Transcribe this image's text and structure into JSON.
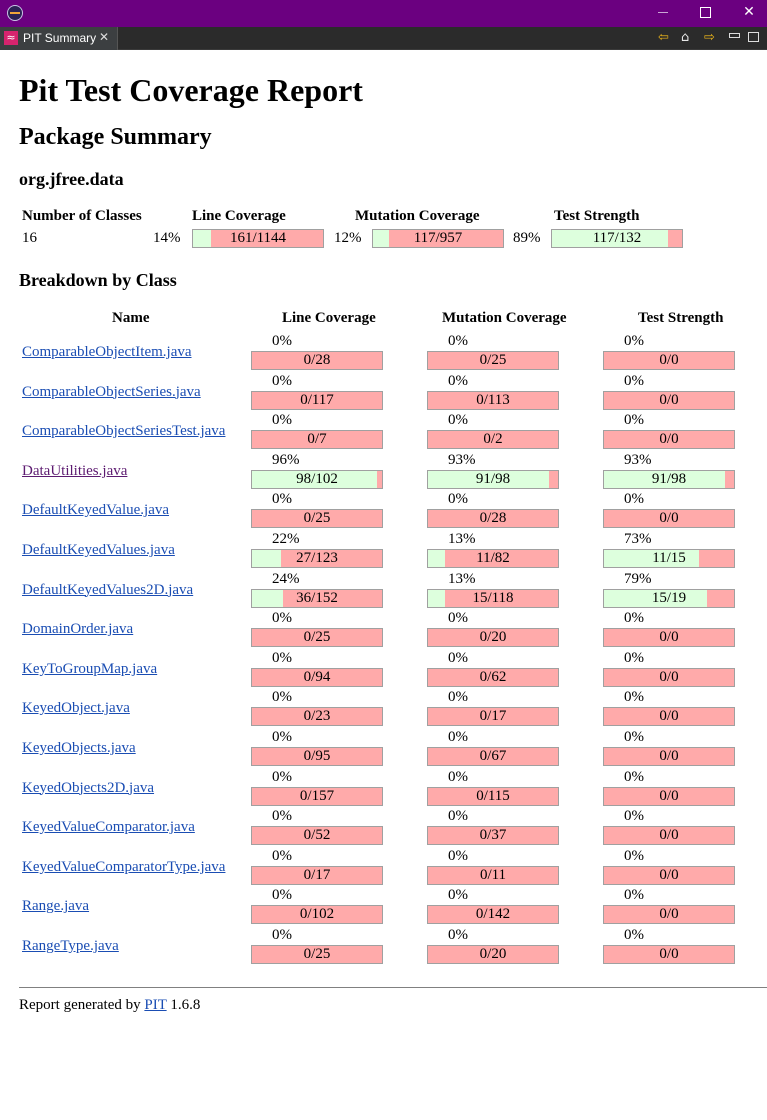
{
  "window": {
    "min_label": "",
    "restore_label": "",
    "close_label": "✕"
  },
  "tab": {
    "icon_glyph": "≈",
    "label": "PIT Summary",
    "close_glyph": "✕"
  },
  "toolbar": {
    "back_glyph": "⇦",
    "home_glyph": "⌂",
    "forward_glyph": "⇨"
  },
  "report": {
    "title": "Pit Test Coverage Report",
    "package_heading": "Package Summary",
    "package_name": "org.jfree.data",
    "breakdown_heading": "Breakdown by Class"
  },
  "summary": {
    "headers": {
      "classes": "Number of Classes",
      "line": "Line Coverage",
      "mutation": "Mutation Coverage",
      "strength": "Test Strength"
    },
    "classes": "16",
    "line": {
      "pct": "14%",
      "ratio": "161/1144",
      "fraction": 0.14
    },
    "mutation": {
      "pct": "12%",
      "ratio": "117/957",
      "fraction": 0.12
    },
    "strength": {
      "pct": "89%",
      "ratio": "117/132",
      "fraction": 0.89
    }
  },
  "columns": {
    "name": "Name",
    "line": "Line Coverage",
    "mutation": "Mutation Coverage",
    "strength": "Test Strength"
  },
  "rows": [
    {
      "name": "ComparableObjectItem.java",
      "visited": false,
      "line": {
        "pct": "0%",
        "ratio": "0/28",
        "fraction": 0
      },
      "mutation": {
        "pct": "0%",
        "ratio": "0/25",
        "fraction": 0
      },
      "strength": {
        "pct": "0%",
        "ratio": "0/0",
        "fraction": 0
      }
    },
    {
      "name": "ComparableObjectSeries.java",
      "visited": false,
      "line": {
        "pct": "0%",
        "ratio": "0/117",
        "fraction": 0
      },
      "mutation": {
        "pct": "0%",
        "ratio": "0/113",
        "fraction": 0
      },
      "strength": {
        "pct": "0%",
        "ratio": "0/0",
        "fraction": 0
      }
    },
    {
      "name": "ComparableObjectSeriesTest.java",
      "visited": false,
      "line": {
        "pct": "0%",
        "ratio": "0/7",
        "fraction": 0
      },
      "mutation": {
        "pct": "0%",
        "ratio": "0/2",
        "fraction": 0
      },
      "strength": {
        "pct": "0%",
        "ratio": "0/0",
        "fraction": 0
      }
    },
    {
      "name": "DataUtilities.java",
      "visited": true,
      "line": {
        "pct": "96%",
        "ratio": "98/102",
        "fraction": 0.96
      },
      "mutation": {
        "pct": "93%",
        "ratio": "91/98",
        "fraction": 0.93
      },
      "strength": {
        "pct": "93%",
        "ratio": "91/98",
        "fraction": 0.93
      }
    },
    {
      "name": "DefaultKeyedValue.java",
      "visited": false,
      "line": {
        "pct": "0%",
        "ratio": "0/25",
        "fraction": 0
      },
      "mutation": {
        "pct": "0%",
        "ratio": "0/28",
        "fraction": 0
      },
      "strength": {
        "pct": "0%",
        "ratio": "0/0",
        "fraction": 0
      }
    },
    {
      "name": "DefaultKeyedValues.java",
      "visited": false,
      "line": {
        "pct": "22%",
        "ratio": "27/123",
        "fraction": 0.22
      },
      "mutation": {
        "pct": "13%",
        "ratio": "11/82",
        "fraction": 0.13
      },
      "strength": {
        "pct": "73%",
        "ratio": "11/15",
        "fraction": 0.73
      }
    },
    {
      "name": "DefaultKeyedValues2D.java",
      "visited": false,
      "line": {
        "pct": "24%",
        "ratio": "36/152",
        "fraction": 0.24
      },
      "mutation": {
        "pct": "13%",
        "ratio": "15/118",
        "fraction": 0.13
      },
      "strength": {
        "pct": "79%",
        "ratio": "15/19",
        "fraction": 0.79
      }
    },
    {
      "name": "DomainOrder.java",
      "visited": false,
      "line": {
        "pct": "0%",
        "ratio": "0/25",
        "fraction": 0
      },
      "mutation": {
        "pct": "0%",
        "ratio": "0/20",
        "fraction": 0
      },
      "strength": {
        "pct": "0%",
        "ratio": "0/0",
        "fraction": 0
      }
    },
    {
      "name": "KeyToGroupMap.java",
      "visited": false,
      "line": {
        "pct": "0%",
        "ratio": "0/94",
        "fraction": 0
      },
      "mutation": {
        "pct": "0%",
        "ratio": "0/62",
        "fraction": 0
      },
      "strength": {
        "pct": "0%",
        "ratio": "0/0",
        "fraction": 0
      }
    },
    {
      "name": "KeyedObject.java",
      "visited": false,
      "line": {
        "pct": "0%",
        "ratio": "0/23",
        "fraction": 0
      },
      "mutation": {
        "pct": "0%",
        "ratio": "0/17",
        "fraction": 0
      },
      "strength": {
        "pct": "0%",
        "ratio": "0/0",
        "fraction": 0
      }
    },
    {
      "name": "KeyedObjects.java",
      "visited": false,
      "line": {
        "pct": "0%",
        "ratio": "0/95",
        "fraction": 0
      },
      "mutation": {
        "pct": "0%",
        "ratio": "0/67",
        "fraction": 0
      },
      "strength": {
        "pct": "0%",
        "ratio": "0/0",
        "fraction": 0
      }
    },
    {
      "name": "KeyedObjects2D.java",
      "visited": false,
      "line": {
        "pct": "0%",
        "ratio": "0/157",
        "fraction": 0
      },
      "mutation": {
        "pct": "0%",
        "ratio": "0/115",
        "fraction": 0
      },
      "strength": {
        "pct": "0%",
        "ratio": "0/0",
        "fraction": 0
      }
    },
    {
      "name": "KeyedValueComparator.java",
      "visited": false,
      "line": {
        "pct": "0%",
        "ratio": "0/52",
        "fraction": 0
      },
      "mutation": {
        "pct": "0%",
        "ratio": "0/37",
        "fraction": 0
      },
      "strength": {
        "pct": "0%",
        "ratio": "0/0",
        "fraction": 0
      }
    },
    {
      "name": "KeyedValueComparatorType.java",
      "visited": false,
      "line": {
        "pct": "0%",
        "ratio": "0/17",
        "fraction": 0
      },
      "mutation": {
        "pct": "0%",
        "ratio": "0/11",
        "fraction": 0
      },
      "strength": {
        "pct": "0%",
        "ratio": "0/0",
        "fraction": 0
      }
    },
    {
      "name": "Range.java",
      "visited": false,
      "line": {
        "pct": "0%",
        "ratio": "0/102",
        "fraction": 0
      },
      "mutation": {
        "pct": "0%",
        "ratio": "0/142",
        "fraction": 0
      },
      "strength": {
        "pct": "0%",
        "ratio": "0/0",
        "fraction": 0
      }
    },
    {
      "name": "RangeType.java",
      "visited": false,
      "line": {
        "pct": "0%",
        "ratio": "0/25",
        "fraction": 0
      },
      "mutation": {
        "pct": "0%",
        "ratio": "0/20",
        "fraction": 0
      },
      "strength": {
        "pct": "0%",
        "ratio": "0/0",
        "fraction": 0
      }
    }
  ],
  "footer": {
    "prefix": "Report generated by",
    "link": "PIT",
    "version": "1.6.8"
  },
  "colors": {
    "covered": "#ddffdd",
    "uncovered": "#ffaaaa",
    "titlebar": "#6b0080",
    "link": "#1a4db3",
    "visited_link": "#5c1a70"
  }
}
